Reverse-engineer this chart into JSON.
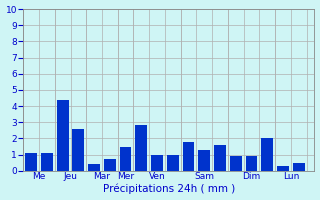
{
  "bars": [
    {
      "x": 1,
      "height": 1.1
    },
    {
      "x": 2,
      "height": 1.1
    },
    {
      "x": 3,
      "height": 4.4
    },
    {
      "x": 4,
      "height": 2.6
    },
    {
      "x": 5,
      "height": 0.4
    },
    {
      "x": 6,
      "height": 0.7
    },
    {
      "x": 7,
      "height": 1.5
    },
    {
      "x": 8,
      "height": 2.8
    },
    {
      "x": 9,
      "height": 1.0
    },
    {
      "x": 10,
      "height": 1.0
    },
    {
      "x": 11,
      "height": 1.8
    },
    {
      "x": 12,
      "height": 1.3
    },
    {
      "x": 13,
      "height": 1.6
    },
    {
      "x": 14,
      "height": 0.9
    },
    {
      "x": 15,
      "height": 0.9
    },
    {
      "x": 16,
      "height": 2.0
    },
    {
      "x": 17,
      "height": 0.3
    },
    {
      "x": 18,
      "height": 0.5
    }
  ],
  "bar_color": "#0033cc",
  "background_color": "#cff5f5",
  "grid_color": "#b0b0b0",
  "xlabel": "Précipitations 24h ( mm )",
  "xlabel_color": "#0000cc",
  "tick_color": "#0000cc",
  "ylim": [
    0,
    10
  ],
  "yticks": [
    0,
    1,
    2,
    3,
    4,
    5,
    6,
    7,
    8,
    9,
    10
  ],
  "day_labels": [
    "Me",
    "Jeu",
    "Mar",
    "Mer",
    "Ven",
    "Sam",
    "Dim",
    "Lun"
  ],
  "day_tick_positions": [
    1.5,
    3.5,
    5.5,
    7.0,
    9.0,
    12.0,
    15.0,
    17.5
  ],
  "day_separator_x": [
    2.5,
    4.5,
    6.5,
    7.5,
    10.5,
    13.5,
    16.5
  ],
  "xlim": [
    0.5,
    19.0
  ],
  "bar_width": 0.75
}
